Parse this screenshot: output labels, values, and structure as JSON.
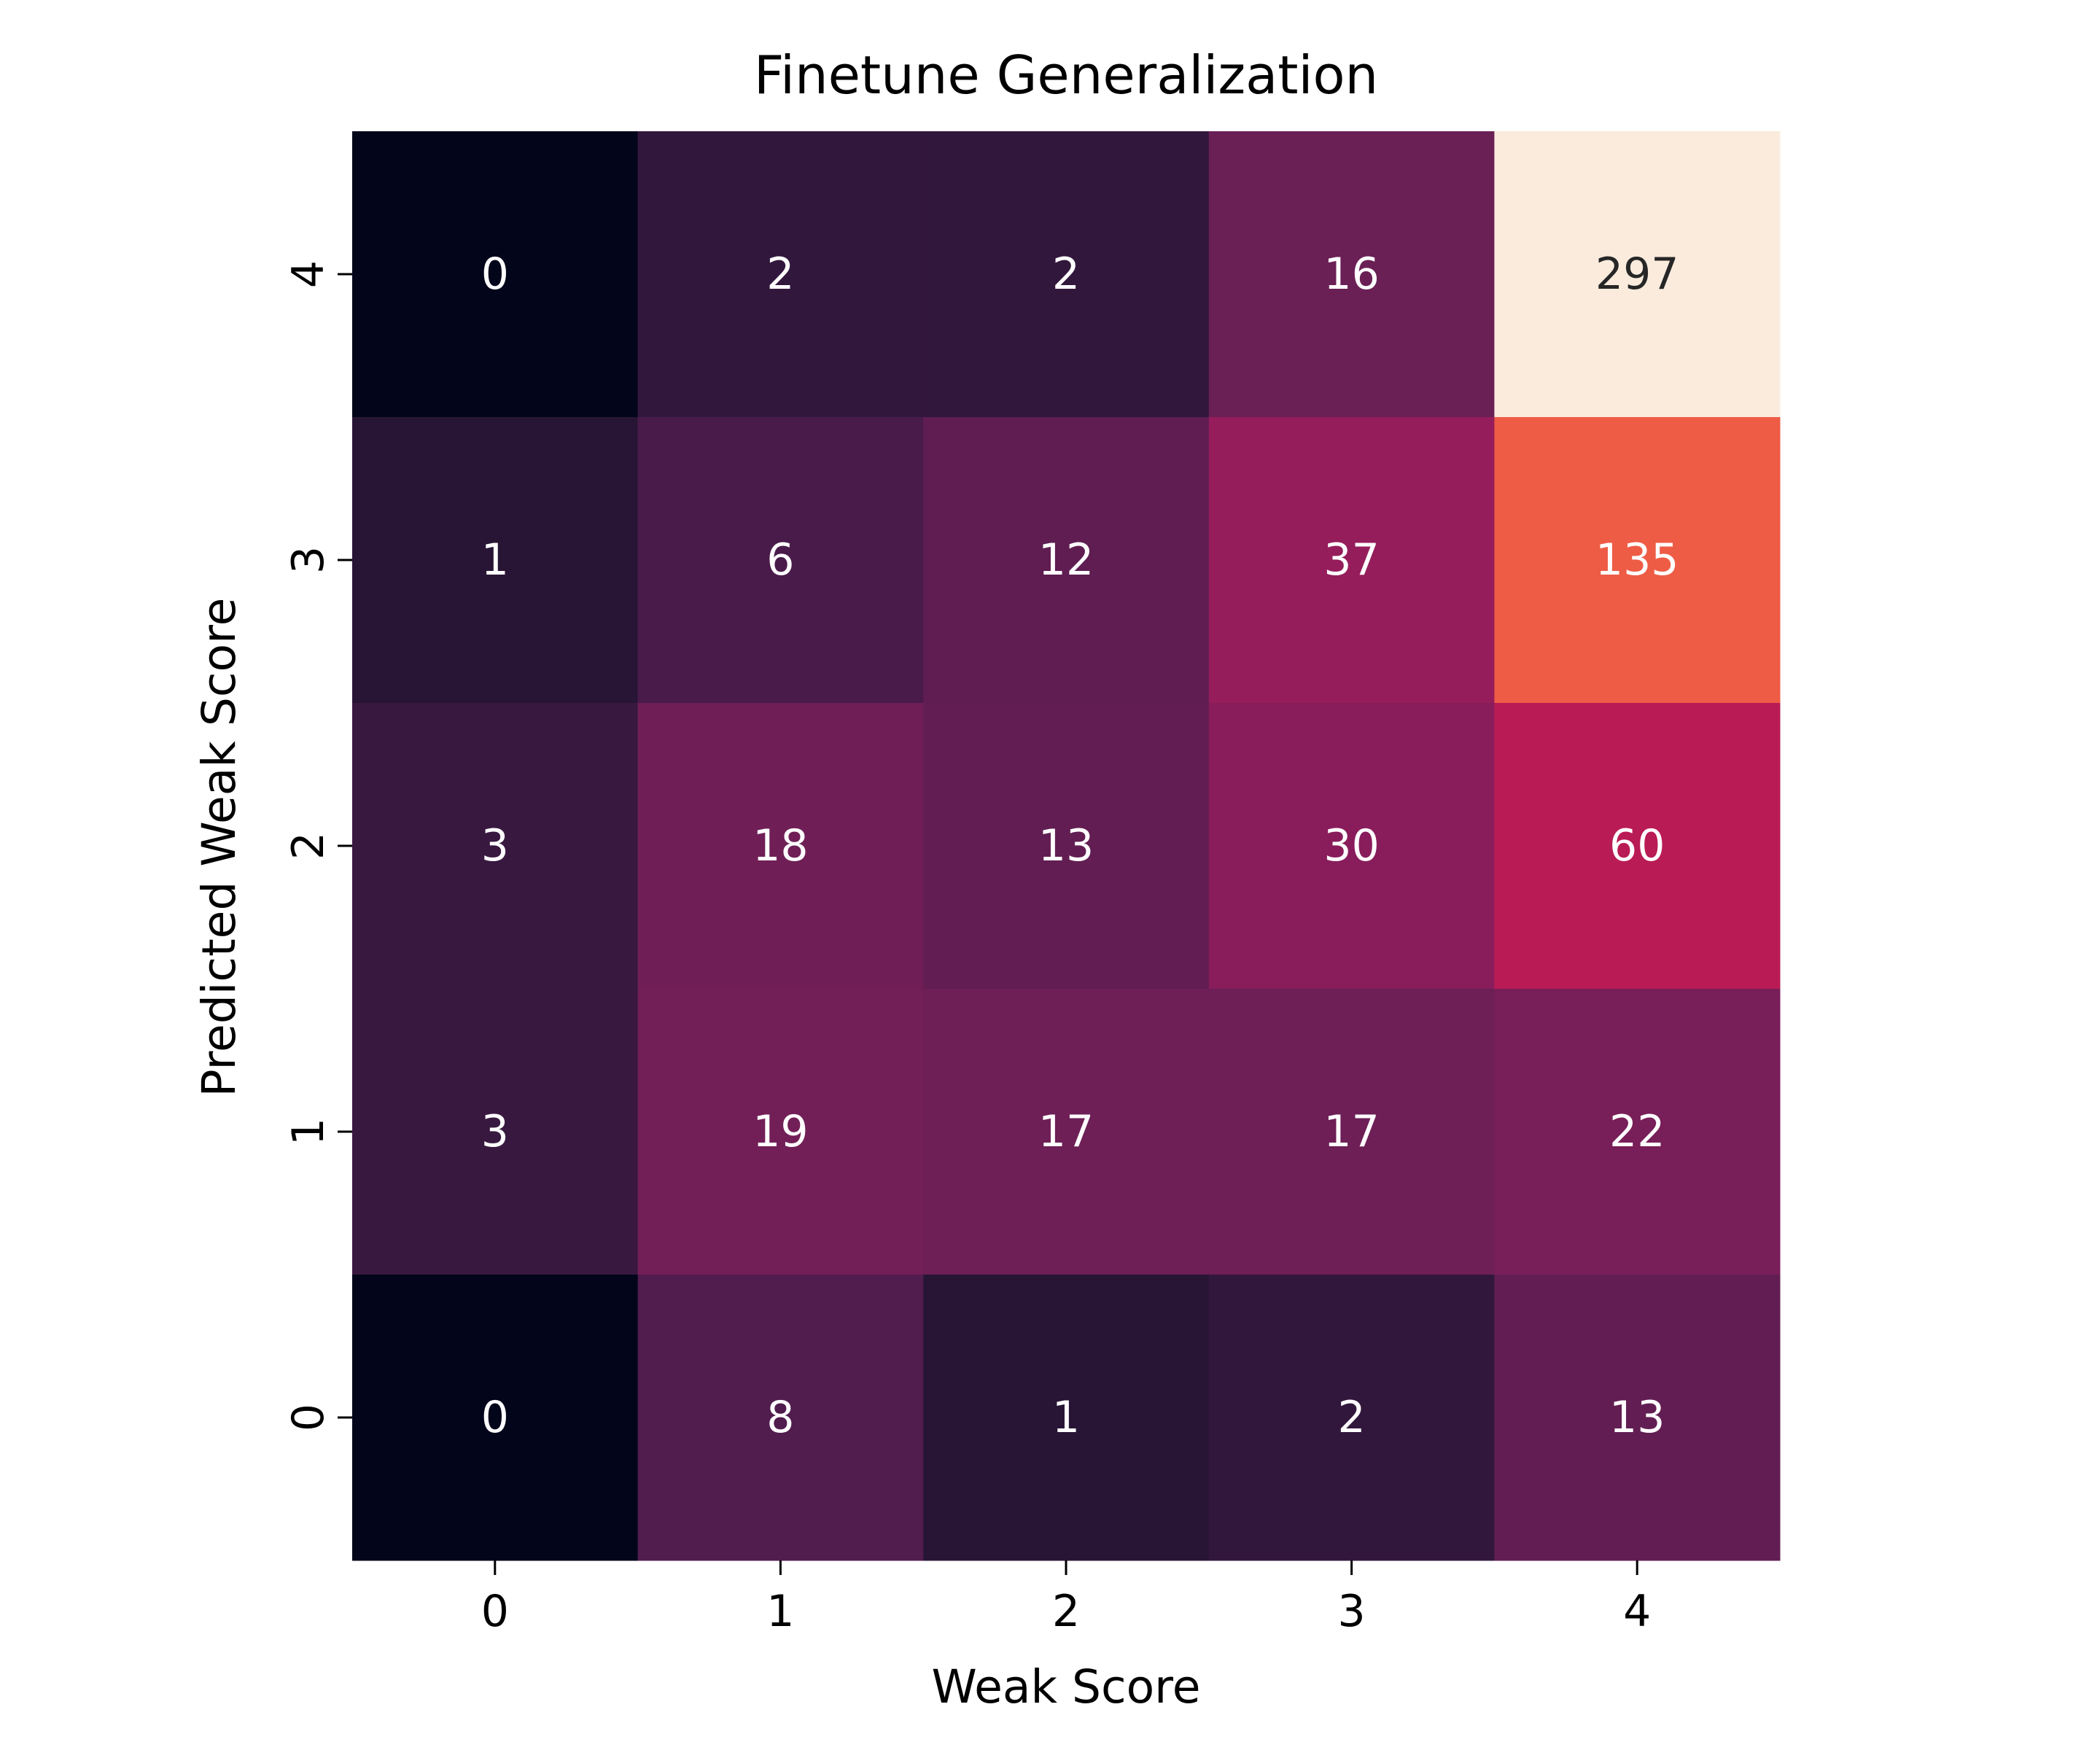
{
  "chart_data": {
    "type": "heatmap",
    "title": "Finetune Generalization",
    "xlabel": "Weak Score",
    "ylabel": "Predicted Weak Score",
    "x_categories": [
      "0",
      "1",
      "2",
      "3",
      "4"
    ],
    "y_categories": [
      "4",
      "3",
      "2",
      "1",
      "0"
    ],
    "values": [
      [
        0,
        2,
        2,
        16,
        297
      ],
      [
        1,
        6,
        12,
        37,
        135
      ],
      [
        3,
        18,
        13,
        30,
        60
      ],
      [
        3,
        19,
        17,
        17,
        22
      ],
      [
        0,
        8,
        1,
        2,
        13
      ]
    ],
    "colormap": "rocket",
    "colorbar": false,
    "annotations": true,
    "text_light_color": "#ffffff",
    "text_dark_color": "#262626"
  }
}
